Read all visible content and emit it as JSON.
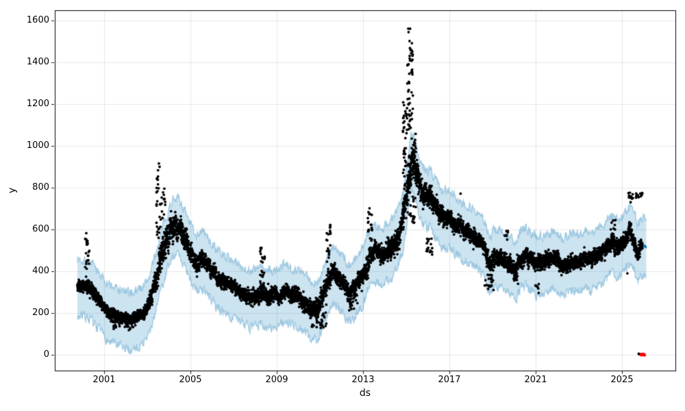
{
  "figure": {
    "background": "#ffffff"
  },
  "chart_data": {
    "type": "scatter",
    "title": "",
    "xlabel": "ds",
    "ylabel": "y",
    "xlim": [
      1998.714,
      2027.476
    ],
    "ylim": [
      -75.5,
      1650.3
    ],
    "xticks": [
      2001,
      2005,
      2009,
      2013,
      2017,
      2021,
      2025
    ],
    "xtick_labels": [
      "2001",
      "2005",
      "2009",
      "2013",
      "2017",
      "2021",
      "2025"
    ],
    "yticks": [
      0,
      200,
      400,
      600,
      800,
      1000,
      1200,
      1400,
      1600
    ],
    "ytick_labels": [
      "0",
      "200",
      "400",
      "600",
      "800",
      "1000",
      "1200",
      "1400",
      "1600"
    ],
    "grid": true,
    "legend": false,
    "colors": {
      "history_points": "#000000",
      "anomaly_points": "#ff0000",
      "forecast_line": "#0072B2",
      "uncertainty_band_fill": "rgba(0,114,178,0.2)",
      "uncertainty_band_edge": "rgba(0,114,178,0.3)",
      "grid": "rgba(0,0,0,0.09)",
      "spine": "#000000",
      "tick_text": "#000000"
    },
    "trend_keypoints": [
      [
        1999.76,
        330
      ],
      [
        2000.0,
        328
      ],
      [
        2000.2,
        322
      ],
      [
        2000.4,
        308
      ],
      [
        2000.6,
        285
      ],
      [
        2000.8,
        258
      ],
      [
        2001.0,
        233
      ],
      [
        2001.2,
        208
      ],
      [
        2001.45,
        195
      ],
      [
        2001.7,
        183
      ],
      [
        2001.95,
        172
      ],
      [
        2002.2,
        166
      ],
      [
        2002.45,
        178
      ],
      [
        2002.7,
        192
      ],
      [
        2002.95,
        215
      ],
      [
        2003.15,
        265
      ],
      [
        2003.35,
        340
      ],
      [
        2003.55,
        420
      ],
      [
        2003.75,
        495
      ],
      [
        2003.95,
        555
      ],
      [
        2004.15,
        610
      ],
      [
        2004.3,
        632
      ],
      [
        2004.5,
        610
      ],
      [
        2004.7,
        568
      ],
      [
        2004.9,
        515
      ],
      [
        2005.1,
        478
      ],
      [
        2005.3,
        448
      ],
      [
        2005.5,
        466
      ],
      [
        2005.7,
        448
      ],
      [
        2005.95,
        405
      ],
      [
        2006.25,
        372
      ],
      [
        2006.55,
        348
      ],
      [
        2006.85,
        332
      ],
      [
        2007.15,
        310
      ],
      [
        2007.45,
        292
      ],
      [
        2007.75,
        274
      ],
      [
        2008.05,
        280
      ],
      [
        2008.3,
        293
      ],
      [
        2008.55,
        275
      ],
      [
        2008.8,
        268
      ],
      [
        2009.05,
        283
      ],
      [
        2009.35,
        298
      ],
      [
        2009.65,
        291
      ],
      [
        2009.95,
        279
      ],
      [
        2010.25,
        256
      ],
      [
        2010.55,
        231
      ],
      [
        2010.85,
        213
      ],
      [
        2011.05,
        256
      ],
      [
        2011.25,
        310
      ],
      [
        2011.45,
        362
      ],
      [
        2011.65,
        396
      ],
      [
        2011.85,
        364
      ],
      [
        2012.05,
        344
      ],
      [
        2012.3,
        301
      ],
      [
        2012.55,
        316
      ],
      [
        2012.8,
        352
      ],
      [
        2013.0,
        391
      ],
      [
        2013.2,
        448
      ],
      [
        2013.35,
        483
      ],
      [
        2013.55,
        496
      ],
      [
        2013.75,
        479
      ],
      [
        2013.9,
        463
      ],
      [
        2014.05,
        497
      ],
      [
        2014.25,
        506
      ],
      [
        2014.45,
        534
      ],
      [
        2014.65,
        579
      ],
      [
        2014.85,
        648
      ],
      [
        2015.0,
        742
      ],
      [
        2015.15,
        878
      ],
      [
        2015.25,
        948
      ],
      [
        2015.38,
        912
      ],
      [
        2015.52,
        858
      ],
      [
        2015.66,
        801
      ],
      [
        2015.8,
        768
      ],
      [
        2015.95,
        744
      ],
      [
        2016.1,
        759
      ],
      [
        2016.3,
        724
      ],
      [
        2016.5,
        686
      ],
      [
        2016.7,
        657
      ],
      [
        2016.9,
        663
      ],
      [
        2017.1,
        647
      ],
      [
        2017.3,
        628
      ],
      [
        2017.55,
        606
      ],
      [
        2017.8,
        586
      ],
      [
        2018.0,
        573
      ],
      [
        2018.25,
        563
      ],
      [
        2018.5,
        536
      ],
      [
        2018.7,
        487
      ],
      [
        2018.88,
        432
      ],
      [
        2019.05,
        464
      ],
      [
        2019.3,
        467
      ],
      [
        2019.55,
        456
      ],
      [
        2019.8,
        440
      ],
      [
        2020.05,
        401
      ],
      [
        2020.3,
        461
      ],
      [
        2020.55,
        477
      ],
      [
        2020.8,
        456
      ],
      [
        2021.05,
        431
      ],
      [
        2021.3,
        441
      ],
      [
        2021.55,
        452
      ],
      [
        2021.8,
        461
      ],
      [
        2022.05,
        447
      ],
      [
        2022.3,
        429
      ],
      [
        2022.55,
        449
      ],
      [
        2022.8,
        457
      ],
      [
        2023.05,
        444
      ],
      [
        2023.3,
        467
      ],
      [
        2023.55,
        457
      ],
      [
        2023.8,
        471
      ],
      [
        2024.05,
        491
      ],
      [
        2024.3,
        514
      ],
      [
        2024.55,
        541
      ],
      [
        2024.8,
        517
      ],
      [
        2025.0,
        531
      ],
      [
        2025.2,
        561
      ],
      [
        2025.4,
        581
      ],
      [
        2025.55,
        558
      ],
      [
        2025.7,
        489
      ],
      [
        2025.85,
        519
      ],
      [
        2026.0,
        529
      ],
      [
        2026.12,
        521
      ]
    ],
    "forecast_line": {
      "range": [
        1999.76,
        2026.14
      ],
      "jitter": 10,
      "width": 1.8
    },
    "uncertainty_band": {
      "range": [
        1999.76,
        2026.14
      ],
      "upper_offset": 130,
      "lower_offset": 145,
      "edge_noise": 26
    },
    "history_scatter": {
      "range": [
        1999.76,
        2025.95
      ],
      "points_per_year": 252,
      "marker_radius": 1.9,
      "volatility_keypoints": [
        [
          1999.8,
          30
        ],
        [
          2000.3,
          38
        ],
        [
          2001.0,
          28
        ],
        [
          2002.0,
          26
        ],
        [
          2003.0,
          34
        ],
        [
          2003.6,
          72
        ],
        [
          2004.3,
          68
        ],
        [
          2005.0,
          50
        ],
        [
          2006.0,
          38
        ],
        [
          2007.0,
          32
        ],
        [
          2008.0,
          36
        ],
        [
          2008.4,
          52
        ],
        [
          2009.0,
          34
        ],
        [
          2010.0,
          38
        ],
        [
          2010.8,
          46
        ],
        [
          2011.5,
          52
        ],
        [
          2012.0,
          44
        ],
        [
          2012.6,
          48
        ],
        [
          2013.3,
          58
        ],
        [
          2014.0,
          44
        ],
        [
          2014.8,
          68
        ],
        [
          2015.2,
          105
        ],
        [
          2015.6,
          68
        ],
        [
          2016.0,
          58
        ],
        [
          2017.0,
          44
        ],
        [
          2018.0,
          38
        ],
        [
          2018.8,
          48
        ],
        [
          2019.5,
          40
        ],
        [
          2020.2,
          44
        ],
        [
          2021.0,
          37
        ],
        [
          2022.0,
          39
        ],
        [
          2023.0,
          37
        ],
        [
          2024.0,
          40
        ],
        [
          2025.0,
          42
        ],
        [
          2025.9,
          40
        ]
      ]
    },
    "outlier_clusters": [
      {
        "from": 2000.12,
        "to": 2000.32,
        "min": 400,
        "max": 590,
        "n": 22
      },
      {
        "from": 2001.3,
        "to": 2002.35,
        "min": 118,
        "max": 200,
        "n": 40
      },
      {
        "from": 2003.42,
        "to": 2003.62,
        "min": 560,
        "max": 930,
        "n": 28
      },
      {
        "from": 2003.6,
        "to": 2003.85,
        "min": 520,
        "max": 800,
        "n": 18
      },
      {
        "from": 2008.22,
        "to": 2008.48,
        "min": 370,
        "max": 520,
        "n": 20
      },
      {
        "from": 2010.5,
        "to": 2011.3,
        "min": 128,
        "max": 245,
        "n": 42
      },
      {
        "from": 2011.3,
        "to": 2011.5,
        "min": 440,
        "max": 625,
        "n": 20
      },
      {
        "from": 2012.35,
        "to": 2012.75,
        "min": 205,
        "max": 275,
        "n": 16
      },
      {
        "from": 2013.22,
        "to": 2013.42,
        "min": 545,
        "max": 700,
        "n": 18
      },
      {
        "from": 2014.85,
        "to": 2015.05,
        "min": 820,
        "max": 1210,
        "n": 36
      },
      {
        "from": 2015.05,
        "to": 2015.32,
        "min": 1080,
        "max": 1520,
        "n": 50
      },
      {
        "from": 2015.08,
        "to": 2015.2,
        "min": 1530,
        "max": 1572,
        "n": 3
      },
      {
        "from": 2015.05,
        "to": 2015.45,
        "min": 620,
        "max": 1080,
        "n": 55
      },
      {
        "from": 2015.9,
        "to": 2016.3,
        "min": 470,
        "max": 560,
        "n": 16
      },
      {
        "from": 2018.6,
        "to": 2019.05,
        "min": 305,
        "max": 385,
        "n": 20
      },
      {
        "from": 2019.55,
        "to": 2019.75,
        "min": 545,
        "max": 595,
        "n": 8
      },
      {
        "from": 2020.0,
        "to": 2020.2,
        "min": 320,
        "max": 395,
        "n": 9
      },
      {
        "from": 2020.95,
        "to": 2021.15,
        "min": 295,
        "max": 345,
        "n": 7
      },
      {
        "from": 2024.45,
        "to": 2024.7,
        "min": 590,
        "max": 650,
        "n": 8
      },
      {
        "from": 2025.3,
        "to": 2025.95,
        "min": 748,
        "max": 778,
        "n": 26
      },
      {
        "from": 2025.74,
        "to": 2025.86,
        "min": -3,
        "max": 5,
        "n": 3
      }
    ],
    "extra_points": [
      [
        2025.25,
        390
      ],
      [
        2025.4,
        731
      ],
      [
        2025.42,
        628
      ],
      [
        2017.52,
        772
      ],
      [
        2013.3,
        702
      ]
    ],
    "anomalies_red": {
      "marker_radius": 2.6,
      "points": [
        [
          2025.9,
          1
        ],
        [
          2025.97,
          2
        ],
        [
          2026.03,
          0
        ]
      ]
    }
  }
}
